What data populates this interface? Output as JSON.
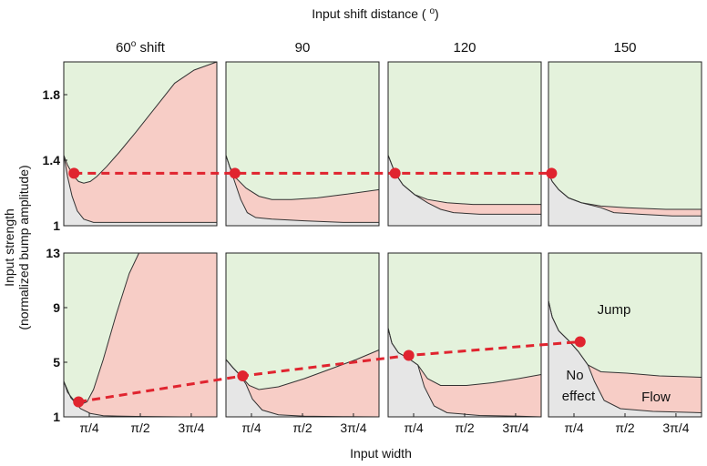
{
  "figure": {
    "top_label": "Input shift distance (o)",
    "x_label": "Input width",
    "y_label_line1": "Input strength",
    "y_label_line2": "(normalized bump amplitude)"
  },
  "chart_data": {
    "type": "area",
    "colors": {
      "jump": "#e4f2dc",
      "flow": "#f7cdc6",
      "no_effect": "#e6e6e6",
      "marker": "#e0242f"
    },
    "region_labels": {
      "jump": "Jump",
      "no_effect_1": "No",
      "no_effect_2": "effect",
      "flow": "Flow"
    },
    "columns": [
      {
        "title": "60",
        "title_suffix": " shift",
        "deg": true
      },
      {
        "title": "90",
        "title_suffix": "",
        "deg": false
      },
      {
        "title": "120",
        "title_suffix": "",
        "deg": false
      },
      {
        "title": "150",
        "title_suffix": "",
        "deg": false
      }
    ],
    "xlim": [
      0.392,
      2.75
    ],
    "x_ticks": [
      {
        "value": 0.785,
        "label": "π/4"
      },
      {
        "value": 1.571,
        "label": "π/2"
      },
      {
        "value": 2.356,
        "label": "3π/4"
      }
    ],
    "rows": [
      {
        "ylim": [
          1,
          2
        ],
        "y_ticks": [
          {
            "value": 1.0,
            "label": "1"
          },
          {
            "value": 1.4,
            "label": "1.4"
          },
          {
            "value": 1.8,
            "label": "1.8"
          }
        ],
        "panels": [
          {
            "upper": [
              [
                0.392,
                1.43
              ],
              [
                0.45,
                1.37
              ],
              [
                0.55,
                1.3
              ],
              [
                0.62,
                1.27
              ],
              [
                0.7,
                1.26
              ],
              [
                0.8,
                1.27
              ],
              [
                0.9,
                1.3
              ],
              [
                1.05,
                1.36
              ],
              [
                1.25,
                1.45
              ],
              [
                1.5,
                1.57
              ],
              [
                1.8,
                1.72
              ],
              [
                2.1,
                1.87
              ],
              [
                2.4,
                1.95
              ],
              [
                2.75,
                2.0
              ]
            ],
            "lower": [
              [
                0.392,
                1.43
              ],
              [
                0.45,
                1.3
              ],
              [
                0.52,
                1.18
              ],
              [
                0.6,
                1.09
              ],
              [
                0.7,
                1.04
              ],
              [
                0.85,
                1.02
              ],
              [
                1.1,
                1.02
              ],
              [
                1.6,
                1.02
              ],
              [
                2.2,
                1.02
              ],
              [
                2.75,
                1.02
              ]
            ],
            "marker": {
              "x": 0.55,
              "y": 1.32
            }
          },
          {
            "upper": [
              [
                0.392,
                1.43
              ],
              [
                0.45,
                1.36
              ],
              [
                0.55,
                1.29
              ],
              [
                0.7,
                1.23
              ],
              [
                0.9,
                1.18
              ],
              [
                1.1,
                1.16
              ],
              [
                1.4,
                1.16
              ],
              [
                1.8,
                1.17
              ],
              [
                2.2,
                1.19
              ],
              [
                2.75,
                1.22
              ]
            ],
            "lower": [
              [
                0.392,
                1.43
              ],
              [
                0.5,
                1.3
              ],
              [
                0.62,
                1.16
              ],
              [
                0.72,
                1.08
              ],
              [
                0.85,
                1.05
              ],
              [
                1.1,
                1.04
              ],
              [
                1.6,
                1.03
              ],
              [
                2.2,
                1.02
              ],
              [
                2.75,
                1.02
              ]
            ],
            "marker": {
              "x": 0.53,
              "y": 1.32
            }
          },
          {
            "upper": [
              [
                0.392,
                1.43
              ],
              [
                0.5,
                1.32
              ],
              [
                0.62,
                1.25
              ],
              [
                0.8,
                1.19
              ],
              [
                1.0,
                1.16
              ],
              [
                1.3,
                1.14
              ],
              [
                1.7,
                1.13
              ],
              [
                2.2,
                1.13
              ],
              [
                2.75,
                1.13
              ]
            ],
            "lower": [
              [
                0.392,
                1.43
              ],
              [
                0.5,
                1.32
              ],
              [
                0.62,
                1.25
              ],
              [
                0.8,
                1.19
              ],
              [
                1.0,
                1.14
              ],
              [
                1.2,
                1.1
              ],
              [
                1.4,
                1.08
              ],
              [
                1.8,
                1.07
              ],
              [
                2.3,
                1.07
              ],
              [
                2.75,
                1.07
              ]
            ],
            "marker": {
              "x": 0.5,
              "y": 1.32
            }
          },
          {
            "upper": [
              [
                0.392,
                1.32
              ],
              [
                0.45,
                1.27
              ],
              [
                0.55,
                1.22
              ],
              [
                0.7,
                1.17
              ],
              [
                0.9,
                1.14
              ],
              [
                1.2,
                1.12
              ],
              [
                1.6,
                1.11
              ],
              [
                2.2,
                1.1
              ],
              [
                2.75,
                1.1
              ]
            ],
            "lower": [
              [
                0.392,
                1.32
              ],
              [
                0.45,
                1.27
              ],
              [
                0.55,
                1.22
              ],
              [
                0.7,
                1.17
              ],
              [
                0.9,
                1.14
              ],
              [
                1.2,
                1.11
              ],
              [
                1.4,
                1.08
              ],
              [
                1.8,
                1.07
              ],
              [
                2.3,
                1.06
              ],
              [
                2.75,
                1.06
              ]
            ],
            "marker": {
              "x": 0.44,
              "y": 1.32
            }
          }
        ]
      },
      {
        "ylim": [
          1,
          13
        ],
        "y_ticks": [
          {
            "value": 1,
            "label": "1"
          },
          {
            "value": 5,
            "label": "5"
          },
          {
            "value": 9,
            "label": "9"
          },
          {
            "value": 13,
            "label": "13"
          }
        ],
        "panels": [
          {
            "upper": [
              [
                0.392,
                3.6
              ],
              [
                0.45,
                2.8
              ],
              [
                0.55,
                2.2
              ],
              [
                0.65,
                1.9
              ],
              [
                0.75,
                2.1
              ],
              [
                0.85,
                3.0
              ],
              [
                1.0,
                5.2
              ],
              [
                1.2,
                8.5
              ],
              [
                1.4,
                11.5
              ],
              [
                1.55,
                13.0
              ],
              [
                2.75,
                13.0
              ]
            ],
            "lower": [
              [
                0.392,
                3.6
              ],
              [
                0.5,
                2.4
              ],
              [
                0.65,
                1.6
              ],
              [
                0.8,
                1.25
              ],
              [
                1.0,
                1.08
              ],
              [
                1.5,
                1.03
              ],
              [
                2.2,
                1.0
              ],
              [
                2.75,
                1.0
              ]
            ],
            "marker": {
              "x": 0.62,
              "y": 2.1
            }
          },
          {
            "upper": [
              [
                0.392,
                5.2
              ],
              [
                0.5,
                4.6
              ],
              [
                0.6,
                4.1
              ],
              [
                0.75,
                3.3
              ],
              [
                0.9,
                3.0
              ],
              [
                1.2,
                3.2
              ],
              [
                1.6,
                3.8
              ],
              [
                2.0,
                4.5
              ],
              [
                2.4,
                5.2
              ],
              [
                2.75,
                5.9
              ]
            ],
            "lower": [
              [
                0.392,
                5.2
              ],
              [
                0.5,
                4.6
              ],
              [
                0.6,
                4.1
              ],
              [
                0.7,
                3.4
              ],
              [
                0.8,
                2.3
              ],
              [
                0.95,
                1.5
              ],
              [
                1.2,
                1.15
              ],
              [
                1.6,
                1.05
              ],
              [
                2.2,
                1.02
              ],
              [
                2.75,
                1.0
              ]
            ],
            "marker": {
              "x": 0.65,
              "y": 4.0
            }
          },
          {
            "upper": [
              [
                0.392,
                7.5
              ],
              [
                0.45,
                6.4
              ],
              [
                0.55,
                5.7
              ],
              [
                0.7,
                5.3
              ],
              [
                0.85,
                4.8
              ],
              [
                1.0,
                3.8
              ],
              [
                1.2,
                3.3
              ],
              [
                1.6,
                3.3
              ],
              [
                2.0,
                3.5
              ],
              [
                2.4,
                3.8
              ],
              [
                2.75,
                4.1
              ]
            ],
            "lower": [
              [
                0.392,
                7.5
              ],
              [
                0.45,
                6.4
              ],
              [
                0.55,
                5.7
              ],
              [
                0.7,
                5.3
              ],
              [
                0.85,
                4.8
              ],
              [
                0.95,
                3.2
              ],
              [
                1.1,
                1.8
              ],
              [
                1.3,
                1.3
              ],
              [
                1.8,
                1.1
              ],
              [
                2.4,
                1.05
              ],
              [
                2.75,
                1.0
              ]
            ],
            "marker": {
              "x": 0.71,
              "y": 5.5
            }
          },
          {
            "upper": [
              [
                0.392,
                9.5
              ],
              [
                0.45,
                8.3
              ],
              [
                0.55,
                7.3
              ],
              [
                0.7,
                6.6
              ],
              [
                0.85,
                5.8
              ],
              [
                1.0,
                4.8
              ],
              [
                1.2,
                4.3
              ],
              [
                1.6,
                4.2
              ],
              [
                2.1,
                4.0
              ],
              [
                2.75,
                3.9
              ]
            ],
            "lower": [
              [
                0.392,
                9.5
              ],
              [
                0.45,
                8.3
              ],
              [
                0.55,
                7.3
              ],
              [
                0.7,
                6.6
              ],
              [
                0.85,
                5.8
              ],
              [
                1.0,
                4.8
              ],
              [
                1.1,
                3.6
              ],
              [
                1.25,
                2.2
              ],
              [
                1.5,
                1.6
              ],
              [
                2.0,
                1.4
              ],
              [
                2.75,
                1.3
              ]
            ],
            "marker": {
              "x": 0.88,
              "y": 6.5
            }
          }
        ]
      }
    ]
  }
}
